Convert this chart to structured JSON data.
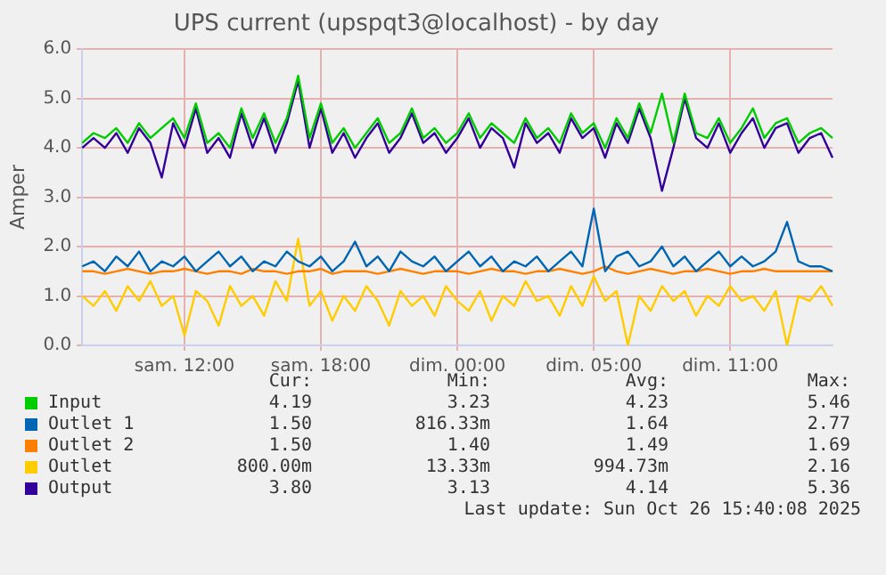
{
  "chart_data": {
    "type": "line",
    "title": "UPS current (upspqt3@localhost) - by day",
    "ylabel": "Amper",
    "categories": [
      null,
      null,
      null,
      null,
      null,
      null,
      null,
      null,
      null,
      "sam. 12:00",
      null,
      null,
      null,
      null,
      null,
      null,
      null,
      null,
      null,
      null,
      null,
      "sam. 18:00",
      null,
      null,
      null,
      null,
      null,
      null,
      null,
      null,
      null,
      null,
      null,
      "dim. 00:00",
      null,
      null,
      null,
      null,
      null,
      null,
      null,
      null,
      null,
      null,
      null,
      "dim. 05:00",
      null,
      null,
      null,
      null,
      null,
      null,
      null,
      null,
      null,
      null,
      null,
      "dim. 11:00",
      null,
      null,
      null,
      null,
      null,
      null,
      null,
      null,
      null
    ],
    "ylim": [
      0,
      6
    ],
    "yticks": [
      {
        "value": 0,
        "label": "0.0"
      },
      {
        "value": 1,
        "label": "1.0"
      },
      {
        "value": 2,
        "label": "2.0"
      },
      {
        "value": 3,
        "label": "3.0"
      },
      {
        "value": 4,
        "label": "4.0"
      },
      {
        "value": 5,
        "label": "5.0"
      },
      {
        "value": 6,
        "label": "6.0"
      }
    ],
    "grid": true,
    "legend": "bottom",
    "marker": "none",
    "line_style": "solid",
    "series": [
      {
        "name": "Input",
        "color": "#00cc00",
        "values": [
          4.1,
          4.3,
          4.2,
          4.4,
          4.1,
          4.5,
          4.2,
          4.4,
          4.6,
          4.2,
          4.9,
          4.1,
          4.3,
          4.0,
          4.8,
          4.2,
          4.7,
          4.1,
          4.6,
          5.46,
          4.2,
          4.9,
          4.1,
          4.4,
          4.0,
          4.3,
          4.6,
          4.1,
          4.3,
          4.8,
          4.2,
          4.4,
          4.1,
          4.3,
          4.7,
          4.2,
          4.5,
          4.3,
          4.1,
          4.6,
          4.2,
          4.4,
          4.1,
          4.7,
          4.3,
          4.5,
          4.0,
          4.6,
          4.2,
          4.9,
          4.3,
          5.1,
          4.1,
          5.1,
          4.3,
          4.2,
          4.6,
          4.1,
          4.4,
          4.8,
          4.2,
          4.5,
          4.6,
          4.1,
          4.3,
          4.4,
          4.2
        ]
      },
      {
        "name": "Outlet 1",
        "color": "#0066b3",
        "values": [
          1.6,
          1.7,
          1.5,
          1.8,
          1.6,
          1.9,
          1.5,
          1.7,
          1.6,
          1.8,
          1.5,
          1.7,
          1.9,
          1.6,
          1.8,
          1.5,
          1.7,
          1.6,
          1.9,
          1.7,
          1.6,
          1.8,
          1.5,
          1.7,
          2.1,
          1.6,
          1.8,
          1.5,
          1.9,
          1.7,
          1.6,
          1.8,
          1.5,
          1.7,
          1.9,
          1.6,
          1.8,
          1.5,
          1.7,
          1.6,
          1.8,
          1.5,
          1.7,
          1.9,
          1.6,
          2.77,
          1.5,
          1.8,
          1.9,
          1.6,
          1.7,
          2.0,
          1.6,
          1.8,
          1.5,
          1.7,
          1.9,
          1.6,
          1.8,
          1.6,
          1.7,
          1.9,
          2.5,
          1.7,
          1.6,
          1.6,
          1.5
        ]
      },
      {
        "name": "Outlet 2",
        "color": "#ff8000",
        "values": [
          1.5,
          1.5,
          1.45,
          1.5,
          1.55,
          1.5,
          1.45,
          1.5,
          1.5,
          1.55,
          1.5,
          1.45,
          1.5,
          1.5,
          1.45,
          1.55,
          1.5,
          1.5,
          1.45,
          1.5,
          1.5,
          1.55,
          1.45,
          1.5,
          1.5,
          1.5,
          1.45,
          1.5,
          1.55,
          1.5,
          1.45,
          1.5,
          1.5,
          1.5,
          1.45,
          1.5,
          1.55,
          1.5,
          1.5,
          1.45,
          1.5,
          1.5,
          1.55,
          1.5,
          1.45,
          1.5,
          1.6,
          1.5,
          1.45,
          1.5,
          1.55,
          1.5,
          1.45,
          1.5,
          1.5,
          1.55,
          1.5,
          1.45,
          1.5,
          1.5,
          1.55,
          1.5,
          1.5,
          1.5,
          1.5,
          1.5,
          1.5
        ]
      },
      {
        "name": "Outlet",
        "color": "#ffcc00",
        "values": [
          1.0,
          0.8,
          1.1,
          0.7,
          1.2,
          0.9,
          1.3,
          0.8,
          1.0,
          0.2,
          1.1,
          0.9,
          0.4,
          1.2,
          0.8,
          1.0,
          0.6,
          1.3,
          0.9,
          2.16,
          0.8,
          1.1,
          0.5,
          1.0,
          0.7,
          1.2,
          0.9,
          0.4,
          1.1,
          0.8,
          1.0,
          0.6,
          1.2,
          0.9,
          0.7,
          1.1,
          0.5,
          1.0,
          0.8,
          1.3,
          0.9,
          1.0,
          0.6,
          1.2,
          0.8,
          1.4,
          0.9,
          1.1,
          0.0,
          1.0,
          0.7,
          1.2,
          0.9,
          1.1,
          0.6,
          1.0,
          0.8,
          1.2,
          0.9,
          1.0,
          0.7,
          1.1,
          0.0,
          1.0,
          0.9,
          1.2,
          0.8
        ]
      },
      {
        "name": "Output",
        "color": "#330099",
        "values": [
          4.0,
          4.2,
          4.0,
          4.3,
          3.9,
          4.4,
          4.1,
          3.4,
          4.5,
          4.0,
          4.8,
          3.9,
          4.2,
          3.8,
          4.7,
          4.0,
          4.6,
          3.9,
          4.5,
          5.36,
          4.0,
          4.8,
          3.9,
          4.3,
          3.8,
          4.2,
          4.5,
          3.9,
          4.2,
          4.7,
          4.1,
          4.3,
          3.9,
          4.2,
          4.6,
          4.0,
          4.4,
          4.2,
          3.6,
          4.5,
          4.1,
          4.3,
          3.9,
          4.6,
          4.2,
          4.4,
          3.8,
          4.5,
          4.1,
          4.8,
          4.2,
          3.13,
          4.0,
          5.0,
          4.2,
          4.0,
          4.5,
          3.9,
          4.3,
          4.6,
          4.0,
          4.4,
          4.5,
          3.9,
          4.2,
          4.3,
          3.8
        ]
      }
    ],
    "annotations": [
      "Cur:",
      "Min:",
      "Avg:",
      "Max:",
      "4.19",
      "3.23",
      "4.23",
      "5.46",
      "1.50",
      "816.33m",
      "1.64",
      "2.77",
      "1.50",
      "1.40",
      "1.49",
      "1.69",
      "800.00m",
      "13.33m",
      "994.73m",
      "2.16",
      "3.80",
      "3.13",
      "4.14",
      "5.36",
      "Last update: Sun Oct 26 15:40:08 2025"
    ]
  }
}
